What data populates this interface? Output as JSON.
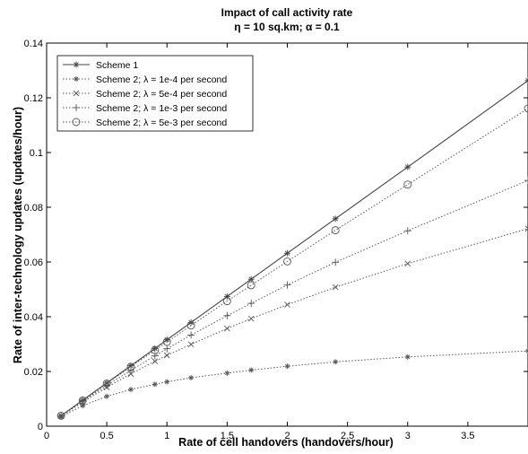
{
  "chart_data": {
    "type": "line",
    "title": "Impact of call activity rate",
    "subtitle": "η = 10 sq.km; α = 0.1",
    "xlabel": "Rate of cell handovers (handovers/hour)",
    "ylabel": "Rate of inter-technology updates (updates/hour)",
    "xlim": [
      0,
      4
    ],
    "ylim": [
      0,
      0.14
    ],
    "xticks": [
      "0",
      "0.5",
      "1",
      "1.5",
      "2",
      "2.5",
      "3",
      "3.5"
    ],
    "yticks": [
      "0",
      "0.02",
      "0.04",
      "0.06",
      "0.08",
      "0.1",
      "0.12",
      "0.14"
    ],
    "grid": false,
    "legend_position": "top-left",
    "series": [
      {
        "name": "Scheme 1",
        "marker": "asterisk",
        "line": "solid",
        "color": "#444444",
        "x": [
          0.12,
          0.3,
          0.5,
          0.7,
          0.9,
          1.0,
          1.2,
          1.5,
          1.7,
          2.0,
          2.4,
          3.0,
          4.0
        ],
        "y": [
          0.0038,
          0.0095,
          0.0158,
          0.0221,
          0.0284,
          0.0316,
          0.0379,
          0.0474,
          0.0537,
          0.0632,
          0.0758,
          0.0947,
          0.1263
        ]
      },
      {
        "name": "Scheme 2; λ = 1e-4 per second",
        "marker": "asterisk-small",
        "line": "dotted",
        "color": "#555555",
        "x": [
          0.12,
          0.3,
          0.5,
          0.7,
          0.9,
          1.0,
          1.2,
          1.5,
          1.7,
          2.0,
          2.4,
          3.0,
          4.0
        ],
        "y": [
          0.0034,
          0.0075,
          0.0109,
          0.0134,
          0.0153,
          0.0162,
          0.0177,
          0.0194,
          0.0205,
          0.0219,
          0.0235,
          0.0253,
          0.0275
        ]
      },
      {
        "name": "Scheme 2; λ = 5e-4 per second",
        "marker": "x",
        "line": "dotted",
        "color": "#555555",
        "x": [
          0.12,
          0.3,
          0.5,
          0.7,
          0.9,
          1.0,
          1.2,
          1.5,
          1.7,
          2.0,
          2.4,
          3.0,
          4.0
        ],
        "y": [
          0.0037,
          0.0088,
          0.0142,
          0.0191,
          0.0237,
          0.0259,
          0.0299,
          0.0357,
          0.0393,
          0.0444,
          0.0508,
          0.0594,
          0.0722
        ]
      },
      {
        "name": "Scheme 2; λ = 1e-3 per second",
        "marker": "plus",
        "line": "dotted",
        "color": "#555555",
        "x": [
          0.12,
          0.3,
          0.5,
          0.7,
          0.9,
          1.0,
          1.2,
          1.5,
          1.7,
          2.0,
          2.4,
          3.0,
          4.0
        ],
        "y": [
          0.0038,
          0.0092,
          0.0149,
          0.0204,
          0.0257,
          0.0283,
          0.0333,
          0.0404,
          0.0449,
          0.0516,
          0.0599,
          0.0714,
          0.0898
        ]
      },
      {
        "name": "Scheme 2; λ = 5e-3 per second",
        "marker": "circle",
        "line": "dotted",
        "color": "#555555",
        "x": [
          0.12,
          0.3,
          0.5,
          0.7,
          0.9,
          1.0,
          1.2,
          1.5,
          1.7,
          2.0,
          2.4,
          3.0,
          4.0
        ],
        "y": [
          0.0038,
          0.0094,
          0.0156,
          0.0217,
          0.0278,
          0.0308,
          0.0368,
          0.0457,
          0.0515,
          0.0602,
          0.0716,
          0.0883,
          0.1161
        ]
      }
    ]
  }
}
